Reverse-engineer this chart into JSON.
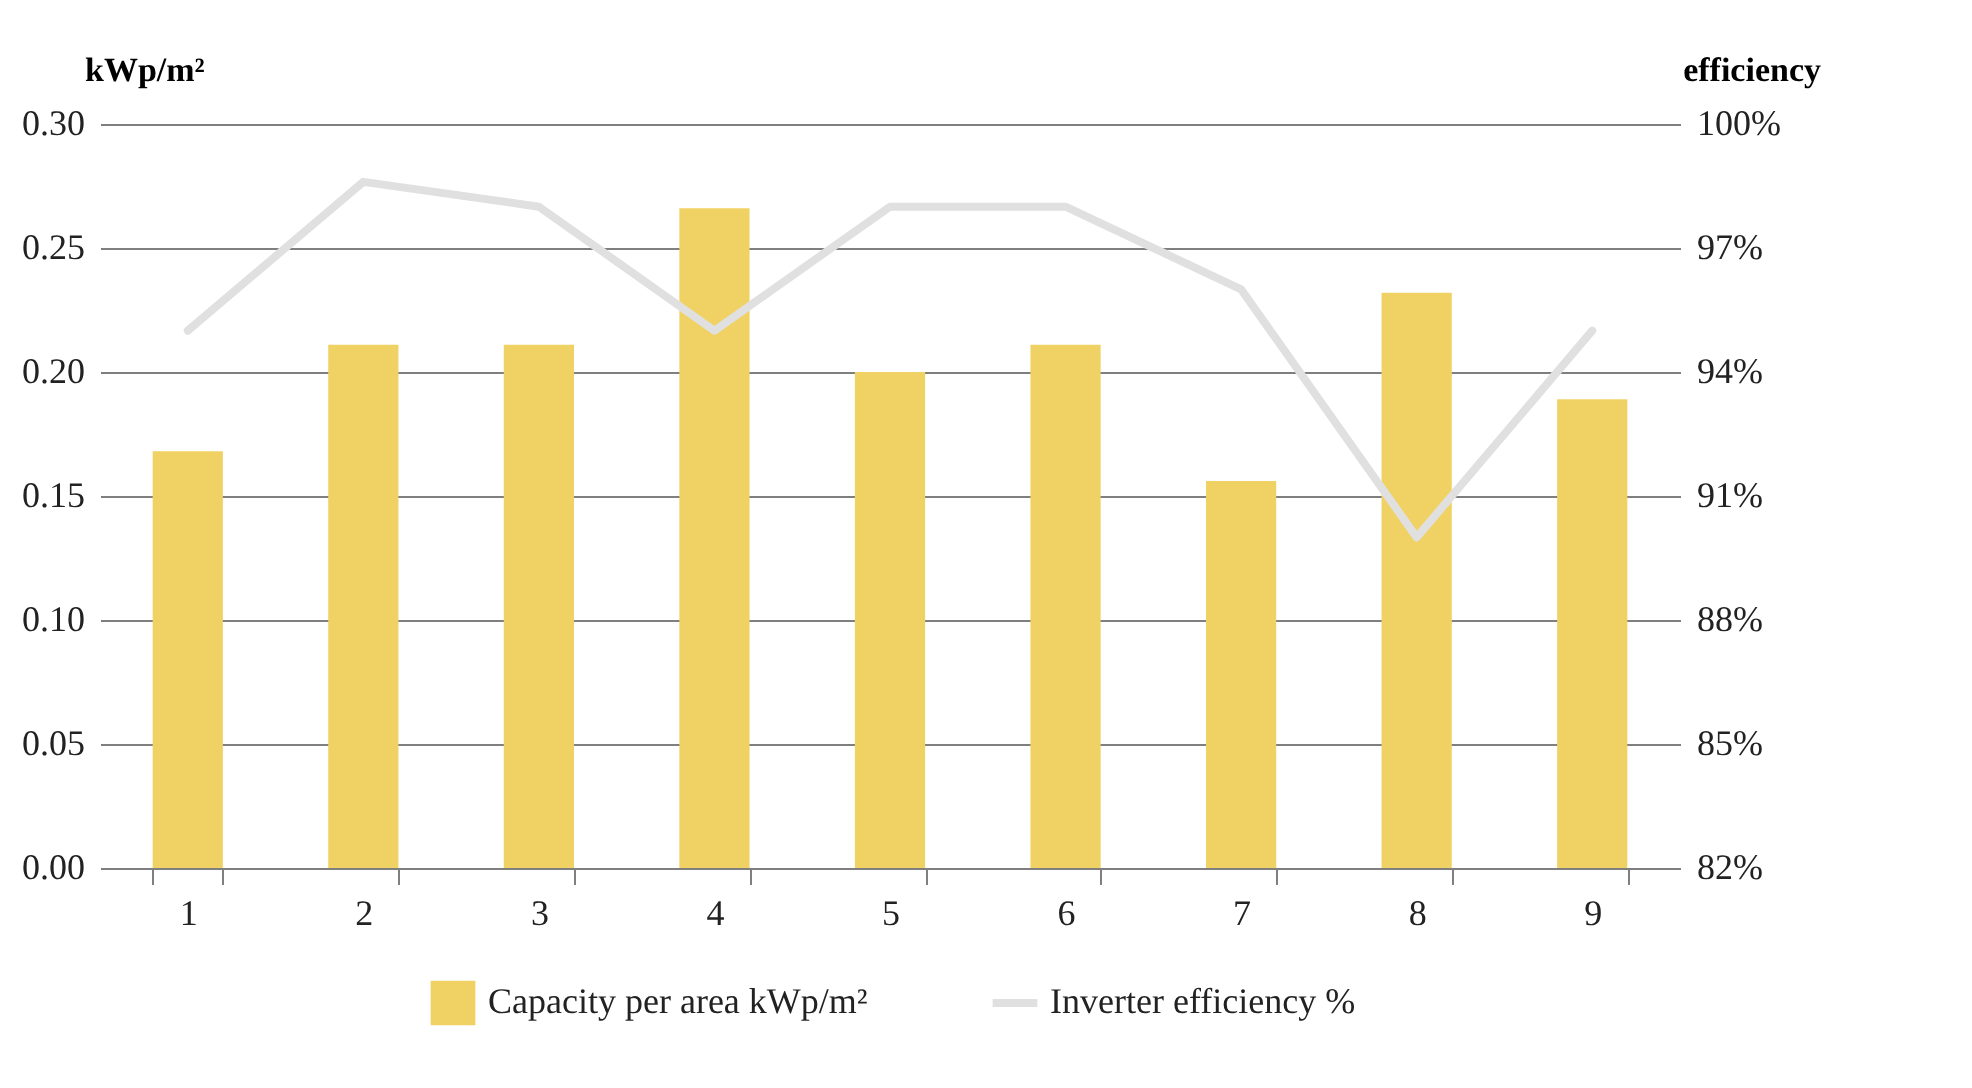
{
  "chart_data": {
    "type": "bar",
    "categories": [
      "1",
      "2",
      "3",
      "4",
      "5",
      "6",
      "7",
      "8",
      "9"
    ],
    "ylabel": "kWp/m²",
    "y2label": "efficiency",
    "series": [
      {
        "name": "Capacity per area kWp/m²",
        "color": "#f0d264",
        "values": [
          0.168,
          0.211,
          0.211,
          0.266,
          0.2,
          0.211,
          0.156,
          0.232,
          0.189
        ]
      },
      {
        "name": "Inverter efficiency %",
        "type": "line",
        "axis": "y2",
        "color": "#e0e0e0",
        "values": [
          95,
          98.6,
          98,
          95,
          98,
          98,
          96,
          90,
          95
        ]
      }
    ],
    "ylim": [
      0,
      0.3
    ],
    "yticks": [
      {
        "value": 0,
        "label": "0.00"
      },
      {
        "value": 0.05,
        "label": "0.05"
      },
      {
        "value": 0.1,
        "label": "0.10"
      },
      {
        "value": 0.15,
        "label": "0.15"
      },
      {
        "value": 0.2,
        "label": "0.20"
      },
      {
        "value": 0.25,
        "label": "0.25"
      },
      {
        "value": 0.3,
        "label": "0.30"
      }
    ],
    "y2lim": [
      82,
      100
    ],
    "y2ticks": [
      {
        "value": 82,
        "label": "82%"
      },
      {
        "value": 85,
        "label": "85%"
      },
      {
        "value": 88,
        "label": "88%"
      },
      {
        "value": 91,
        "label": "91%"
      },
      {
        "value": 94,
        "label": "94%"
      },
      {
        "value": 97,
        "label": "97%"
      },
      {
        "value": 100,
        "label": "100%"
      }
    ],
    "grid": "y",
    "legend": "bottom",
    "line_style": "solid",
    "marker": "none"
  }
}
